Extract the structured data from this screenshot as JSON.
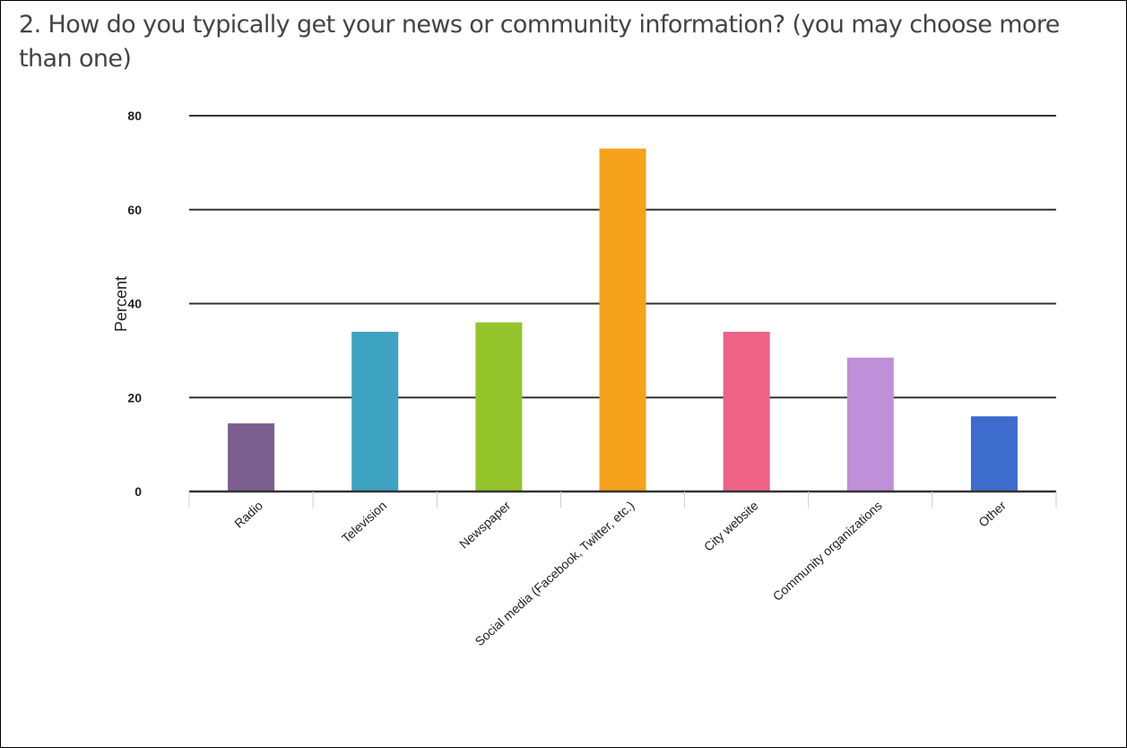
{
  "chart_data": {
    "type": "bar",
    "title": "2. How do you typically get your news or community information? (you may choose more than one)",
    "xlabel": "",
    "ylabel": "Percent",
    "categories": [
      "Radio",
      "Television",
      "Newspaper",
      "Social media (Facebook, Twitter, etc.)",
      "City website",
      "Community organizations",
      "Other"
    ],
    "values": [
      14.5,
      34,
      36,
      73,
      34,
      28.5,
      16
    ],
    "colors": [
      "#7b5f8f",
      "#3ea3c1",
      "#94c42a",
      "#f4a21b",
      "#ee6285",
      "#c090d8",
      "#3d6ccd"
    ],
    "yticks": [
      0,
      20,
      40,
      60,
      80
    ],
    "ylim": [
      0,
      80
    ],
    "grid": true,
    "legend": "none"
  }
}
